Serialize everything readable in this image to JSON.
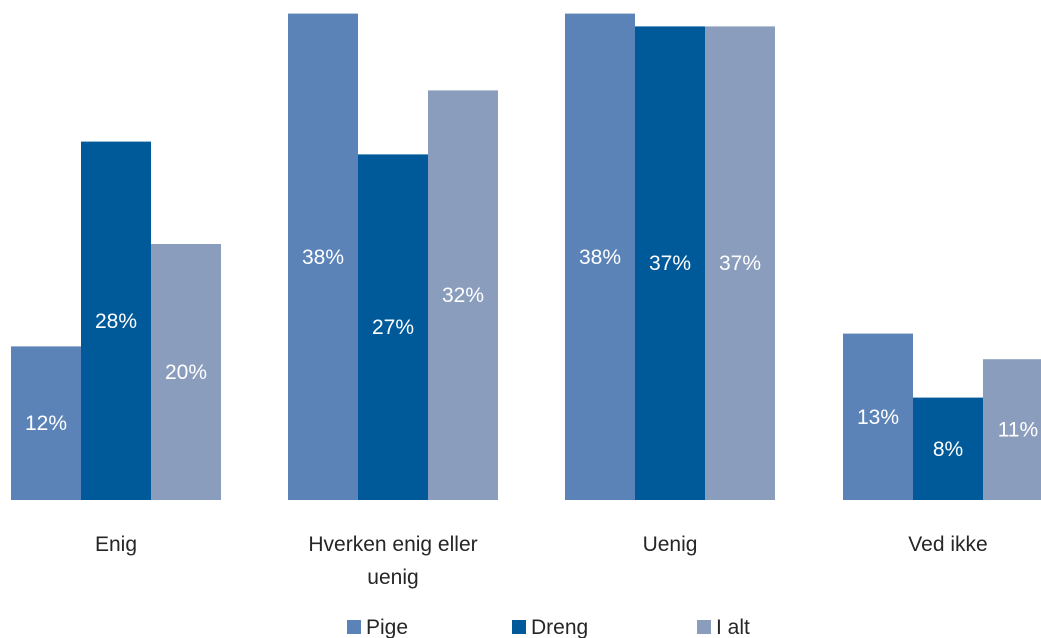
{
  "chart_data": {
    "type": "bar",
    "categories": [
      "Enig",
      "Hverken enig eller uenig",
      "Uenig",
      "Ved ikke"
    ],
    "category_label_lines": [
      [
        "Enig"
      ],
      [
        "Hverken enig eller",
        "uenig"
      ],
      [
        "Uenig"
      ],
      [
        "Ved ikke"
      ]
    ],
    "series": [
      {
        "name": "Pige",
        "color": "#5b83b8",
        "values": [
          12,
          38,
          38,
          13
        ],
        "labels": [
          "12%",
          "38%",
          "38%",
          "13%"
        ]
      },
      {
        "name": "Dreng",
        "color": "#005a9a",
        "values": [
          28,
          27,
          37,
          8
        ],
        "labels": [
          "28%",
          "27%",
          "37%",
          "8%"
        ]
      },
      {
        "name": "I alt",
        "color": "#8b9dbd",
        "values": [
          20,
          32,
          37,
          11
        ],
        "labels": [
          "20%",
          "32%",
          "37%",
          "11%"
        ]
      }
    ],
    "value_format": "percent",
    "legend_position": "bottom",
    "grid": false,
    "show_y_axis": false
  }
}
